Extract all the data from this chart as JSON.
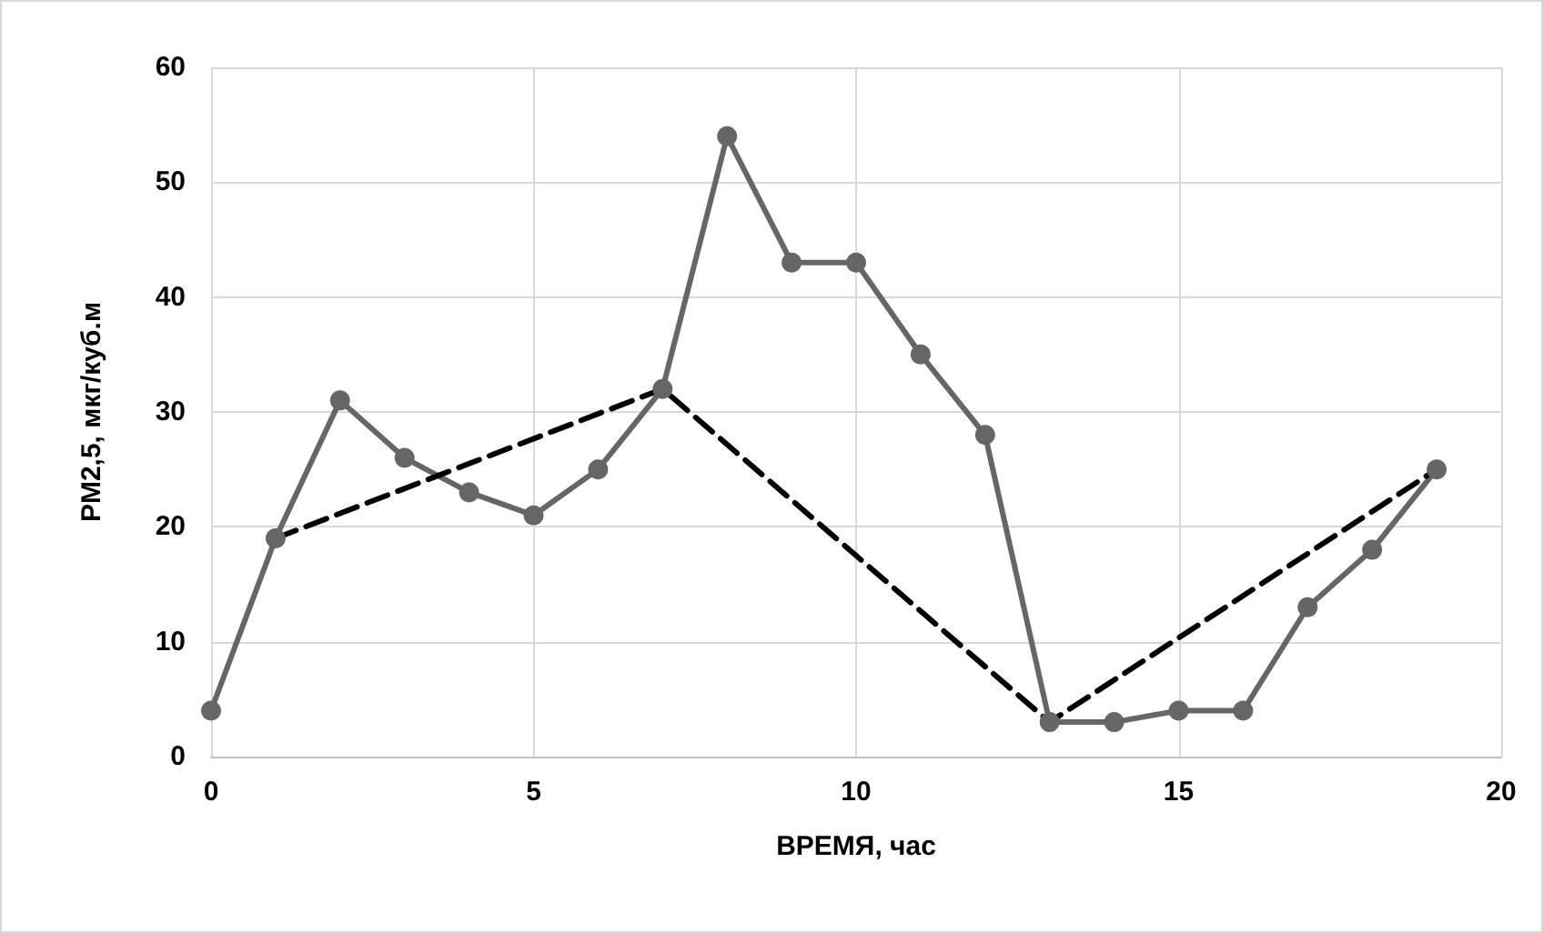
{
  "chart_data": {
    "type": "line",
    "xlabel": "ВРЕМЯ, час",
    "ylabel": "PM2,5, мкг/куб.м",
    "xlim": [
      0,
      20
    ],
    "xticks": [
      0,
      5,
      10,
      15,
      20
    ],
    "ylim": [
      0,
      60
    ],
    "yticks": [
      0,
      10,
      20,
      30,
      40,
      50,
      60
    ],
    "grid": true,
    "series": [
      {
        "color": "#666666",
        "marker": "circle",
        "line_style": "solid",
        "x": [
          0,
          1,
          2,
          3,
          4,
          5,
          6,
          7,
          8,
          9,
          10,
          11,
          12,
          13,
          14,
          15,
          16,
          17,
          18,
          19
        ],
        "values": [
          4,
          19,
          31,
          26,
          23,
          21,
          25,
          32,
          54,
          43,
          43,
          35,
          28,
          3,
          3,
          4,
          4,
          13,
          18,
          25
        ]
      },
      {
        "color": "#000000",
        "marker": "none",
        "line_style": "dashed",
        "x": [
          1,
          7,
          13,
          19
        ],
        "values": [
          19,
          32,
          3,
          25
        ]
      }
    ]
  }
}
